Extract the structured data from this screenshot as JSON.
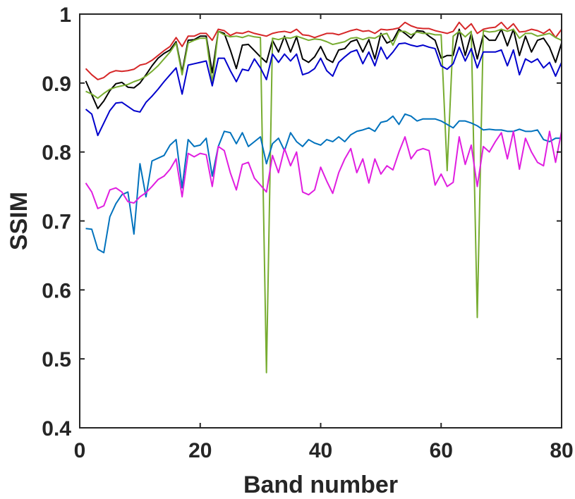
{
  "chart_data": {
    "type": "line",
    "title": "",
    "xlabel": "Band number",
    "ylabel": "SSIM",
    "xlim": [
      0,
      80
    ],
    "ylim": [
      0.4,
      1
    ],
    "xticks": [
      0,
      20,
      40,
      60,
      80
    ],
    "yticks": [
      0.4,
      0.5,
      0.6,
      0.7,
      0.8,
      0.9,
      1
    ],
    "xtick_labels": [
      "0",
      "20",
      "40",
      "60",
      "80"
    ],
    "ytick_labels": [
      "0.4",
      "0.5",
      "0.6",
      "0.7",
      "0.8",
      "0.9",
      "1"
    ],
    "grid": false,
    "legend": "none",
    "x": [
      1,
      2,
      3,
      4,
      5,
      6,
      7,
      8,
      9,
      10,
      11,
      12,
      13,
      14,
      15,
      16,
      17,
      18,
      19,
      20,
      21,
      22,
      23,
      24,
      25,
      26,
      27,
      28,
      29,
      30,
      31,
      32,
      33,
      34,
      35,
      36,
      37,
      38,
      39,
      40,
      41,
      42,
      43,
      44,
      45,
      46,
      47,
      48,
      49,
      50,
      51,
      52,
      53,
      54,
      55,
      56,
      57,
      58,
      59,
      60,
      61,
      62,
      63,
      64,
      65,
      66,
      67,
      68,
      69,
      70,
      71,
      72,
      73,
      74,
      75,
      76,
      77,
      78,
      79,
      80
    ],
    "series": [
      {
        "color": "#d62728",
        "values": [
          0.921,
          0.912,
          0.905,
          0.908,
          0.915,
          0.918,
          0.917,
          0.918,
          0.92,
          0.926,
          0.928,
          0.933,
          0.94,
          0.947,
          0.953,
          0.966,
          0.953,
          0.968,
          0.968,
          0.972,
          0.972,
          0.962,
          0.978,
          0.976,
          0.969,
          0.973,
          0.972,
          0.975,
          0.972,
          0.97,
          0.968,
          0.972,
          0.974,
          0.975,
          0.973,
          0.978,
          0.97,
          0.969,
          0.966,
          0.969,
          0.972,
          0.972,
          0.97,
          0.973,
          0.976,
          0.978,
          0.975,
          0.976,
          0.972,
          0.978,
          0.977,
          0.978,
          0.98,
          0.988,
          0.983,
          0.98,
          0.979,
          0.979,
          0.976,
          0.974,
          0.972,
          0.975,
          0.988,
          0.978,
          0.986,
          0.972,
          0.978,
          0.98,
          0.981,
          0.988,
          0.978,
          0.986,
          0.974,
          0.975,
          0.978,
          0.976,
          0.972,
          0.978,
          0.966,
          0.978
        ]
      },
      {
        "color": "#000000",
        "values": [
          0.903,
          0.883,
          0.863,
          0.874,
          0.889,
          0.899,
          0.901,
          0.894,
          0.893,
          0.9,
          0.912,
          0.925,
          0.936,
          0.943,
          0.948,
          0.96,
          0.916,
          0.962,
          0.963,
          0.968,
          0.968,
          0.915,
          0.975,
          0.972,
          0.948,
          0.921,
          0.955,
          0.956,
          0.947,
          0.938,
          0.93,
          0.962,
          0.945,
          0.968,
          0.945,
          0.967,
          0.935,
          0.93,
          0.938,
          0.953,
          0.935,
          0.93,
          0.948,
          0.95,
          0.96,
          0.963,
          0.945,
          0.963,
          0.935,
          0.972,
          0.958,
          0.962,
          0.978,
          0.972,
          0.965,
          0.976,
          0.975,
          0.968,
          0.962,
          0.936,
          0.94,
          0.94,
          0.978,
          0.94,
          0.972,
          0.935,
          0.97,
          0.962,
          0.962,
          0.978,
          0.954,
          0.978,
          0.94,
          0.968,
          0.945,
          0.962,
          0.965,
          0.952,
          0.93,
          0.958
        ]
      },
      {
        "color": "#77ac30",
        "values": [
          0.888,
          0.884,
          0.878,
          0.885,
          0.891,
          0.894,
          0.896,
          0.898,
          0.902,
          0.905,
          0.91,
          0.917,
          0.925,
          0.935,
          0.945,
          0.958,
          0.912,
          0.958,
          0.962,
          0.965,
          0.965,
          0.9,
          0.975,
          0.97,
          0.967,
          0.968,
          0.966,
          0.969,
          0.967,
          0.966,
          0.48,
          0.965,
          0.963,
          0.966,
          0.965,
          0.968,
          0.965,
          0.962,
          0.964,
          0.963,
          0.96,
          0.956,
          0.958,
          0.96,
          0.965,
          0.966,
          0.963,
          0.966,
          0.965,
          0.97,
          0.972,
          0.955,
          0.975,
          0.975,
          0.97,
          0.974,
          0.972,
          0.972,
          0.97,
          0.97,
          0.773,
          0.968,
          0.975,
          0.967,
          0.975,
          0.56,
          0.976,
          0.974,
          0.975,
          0.978,
          0.975,
          0.978,
          0.965,
          0.972,
          0.972,
          0.968,
          0.97,
          0.972,
          0.966,
          0.962
        ]
      },
      {
        "color": "#0000cc",
        "values": [
          0.862,
          0.855,
          0.824,
          0.842,
          0.86,
          0.871,
          0.872,
          0.866,
          0.86,
          0.858,
          0.872,
          0.881,
          0.891,
          0.902,
          0.912,
          0.922,
          0.884,
          0.926,
          0.928,
          0.93,
          0.932,
          0.896,
          0.936,
          0.936,
          0.918,
          0.902,
          0.92,
          0.918,
          0.935,
          0.922,
          0.905,
          0.942,
          0.93,
          0.942,
          0.932,
          0.942,
          0.912,
          0.915,
          0.921,
          0.936,
          0.918,
          0.91,
          0.93,
          0.938,
          0.945,
          0.948,
          0.928,
          0.945,
          0.925,
          0.952,
          0.935,
          0.945,
          0.957,
          0.958,
          0.955,
          0.953,
          0.955,
          0.952,
          0.95,
          0.925,
          0.92,
          0.928,
          0.952,
          0.932,
          0.95,
          0.922,
          0.945,
          0.945,
          0.945,
          0.948,
          0.925,
          0.948,
          0.912,
          0.935,
          0.93,
          0.935,
          0.922,
          0.93,
          0.91,
          0.93
        ]
      },
      {
        "color": "#0072bd",
        "values": [
          0.689,
          0.688,
          0.659,
          0.654,
          0.706,
          0.725,
          0.738,
          0.742,
          0.681,
          0.783,
          0.735,
          0.787,
          0.791,
          0.795,
          0.81,
          0.818,
          0.748,
          0.818,
          0.808,
          0.81,
          0.82,
          0.765,
          0.808,
          0.83,
          0.828,
          0.812,
          0.828,
          0.808,
          0.815,
          0.822,
          0.783,
          0.812,
          0.82,
          0.802,
          0.828,
          0.815,
          0.808,
          0.818,
          0.813,
          0.81,
          0.818,
          0.815,
          0.822,
          0.815,
          0.825,
          0.83,
          0.832,
          0.835,
          0.83,
          0.843,
          0.845,
          0.852,
          0.84,
          0.855,
          0.852,
          0.845,
          0.848,
          0.848,
          0.848,
          0.845,
          0.84,
          0.835,
          0.845,
          0.845,
          0.842,
          0.838,
          0.832,
          0.833,
          0.832,
          0.832,
          0.83,
          0.83,
          0.833,
          0.83,
          0.83,
          0.832,
          0.818,
          0.815,
          0.82,
          0.82
        ]
      },
      {
        "color": "#e01ee0",
        "values": [
          0.755,
          0.742,
          0.718,
          0.722,
          0.745,
          0.748,
          0.742,
          0.728,
          0.726,
          0.735,
          0.741,
          0.75,
          0.76,
          0.765,
          0.775,
          0.79,
          0.735,
          0.798,
          0.793,
          0.798,
          0.796,
          0.75,
          0.808,
          0.802,
          0.77,
          0.745,
          0.782,
          0.785,
          0.762,
          0.752,
          0.742,
          0.795,
          0.77,
          0.805,
          0.78,
          0.8,
          0.742,
          0.738,
          0.745,
          0.778,
          0.758,
          0.74,
          0.77,
          0.79,
          0.805,
          0.77,
          0.79,
          0.755,
          0.79,
          0.768,
          0.78,
          0.774,
          0.8,
          0.822,
          0.79,
          0.802,
          0.805,
          0.802,
          0.752,
          0.768,
          0.75,
          0.756,
          0.822,
          0.782,
          0.81,
          0.75,
          0.808,
          0.8,
          0.815,
          0.828,
          0.79,
          0.83,
          0.775,
          0.82,
          0.8,
          0.785,
          0.78,
          0.83,
          0.785,
          0.83
        ]
      }
    ]
  }
}
